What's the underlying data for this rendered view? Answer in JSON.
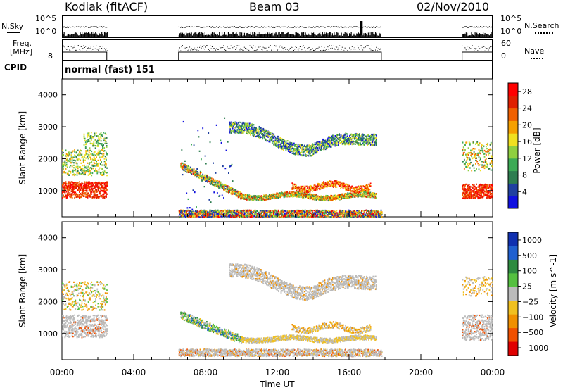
{
  "header": {
    "radar": "Kodiak (fitACF)",
    "beam": "Beam 03",
    "date": "02/Nov/2010"
  },
  "noise_panel": {
    "left_label": "N.Sky",
    "right_label": "N.Search",
    "left_ticks": [
      "10^5",
      "10^0"
    ],
    "right_ticks": [
      "10^5",
      "10^0"
    ]
  },
  "freq_panel": {
    "left_label_1": "Freq.",
    "left_label_2": "[MHz]",
    "left_ticks": [
      "8"
    ],
    "right_label": "Nave",
    "right_ticks": [
      "60",
      "0"
    ]
  },
  "cpid": {
    "label": "CPID",
    "value": "normal (fast) 151"
  },
  "chart_data": [
    {
      "type": "heatmap",
      "title": "",
      "xlabel": "Time UT",
      "ylabel": "Slant Range [km]",
      "x_ticks": [
        "00:00",
        "04:00",
        "08:00",
        "12:00",
        "16:00",
        "20:00",
        "00:00"
      ],
      "xlim_hours": [
        0,
        24
      ],
      "y_ticks": [
        1000,
        2000,
        3000,
        4000
      ],
      "ylim": [
        180,
        4500
      ],
      "colorbar_label": "Power [dB]",
      "colorbar_ticks": [
        "4",
        "8",
        "12",
        "16",
        "20",
        "24",
        "28"
      ],
      "colorbar_range": [
        0,
        30
      ],
      "colors": [
        "#1010e0",
        "#2040a0",
        "#2e7d50",
        "#3caa55",
        "#8fcf40",
        "#f0e020",
        "#f5a000",
        "#f06000",
        "#e02000",
        "#ff0000"
      ],
      "data_intervals_hours": [
        [
          0,
          2.5
        ],
        [
          6.5,
          17.8
        ],
        [
          22.3,
          24
        ]
      ]
    },
    {
      "type": "heatmap",
      "title": "",
      "xlabel": "Time UT",
      "ylabel": "Slant Range [km]",
      "x_ticks": [
        "00:00",
        "04:00",
        "08:00",
        "12:00",
        "16:00",
        "20:00",
        "00:00"
      ],
      "xlim_hours": [
        0,
        24
      ],
      "y_ticks": [
        1000,
        2000,
        3000,
        4000
      ],
      "ylim": [
        180,
        4500
      ],
      "colorbar_label": "Velocity [m s^-1]",
      "colorbar_ticks": [
        "1000",
        "500",
        "100",
        "25",
        "−25",
        "−100",
        "−500",
        "−1000"
      ],
      "colors": [
        "#1030b0",
        "#2060d0",
        "#2e8b40",
        "#55c040",
        "#bbbbbb",
        "#f0c020",
        "#f09000",
        "#f05000",
        "#e00000"
      ],
      "data_intervals_hours": [
        [
          0,
          2.5
        ],
        [
          6.5,
          17.8
        ],
        [
          22.3,
          24
        ]
      ]
    }
  ]
}
